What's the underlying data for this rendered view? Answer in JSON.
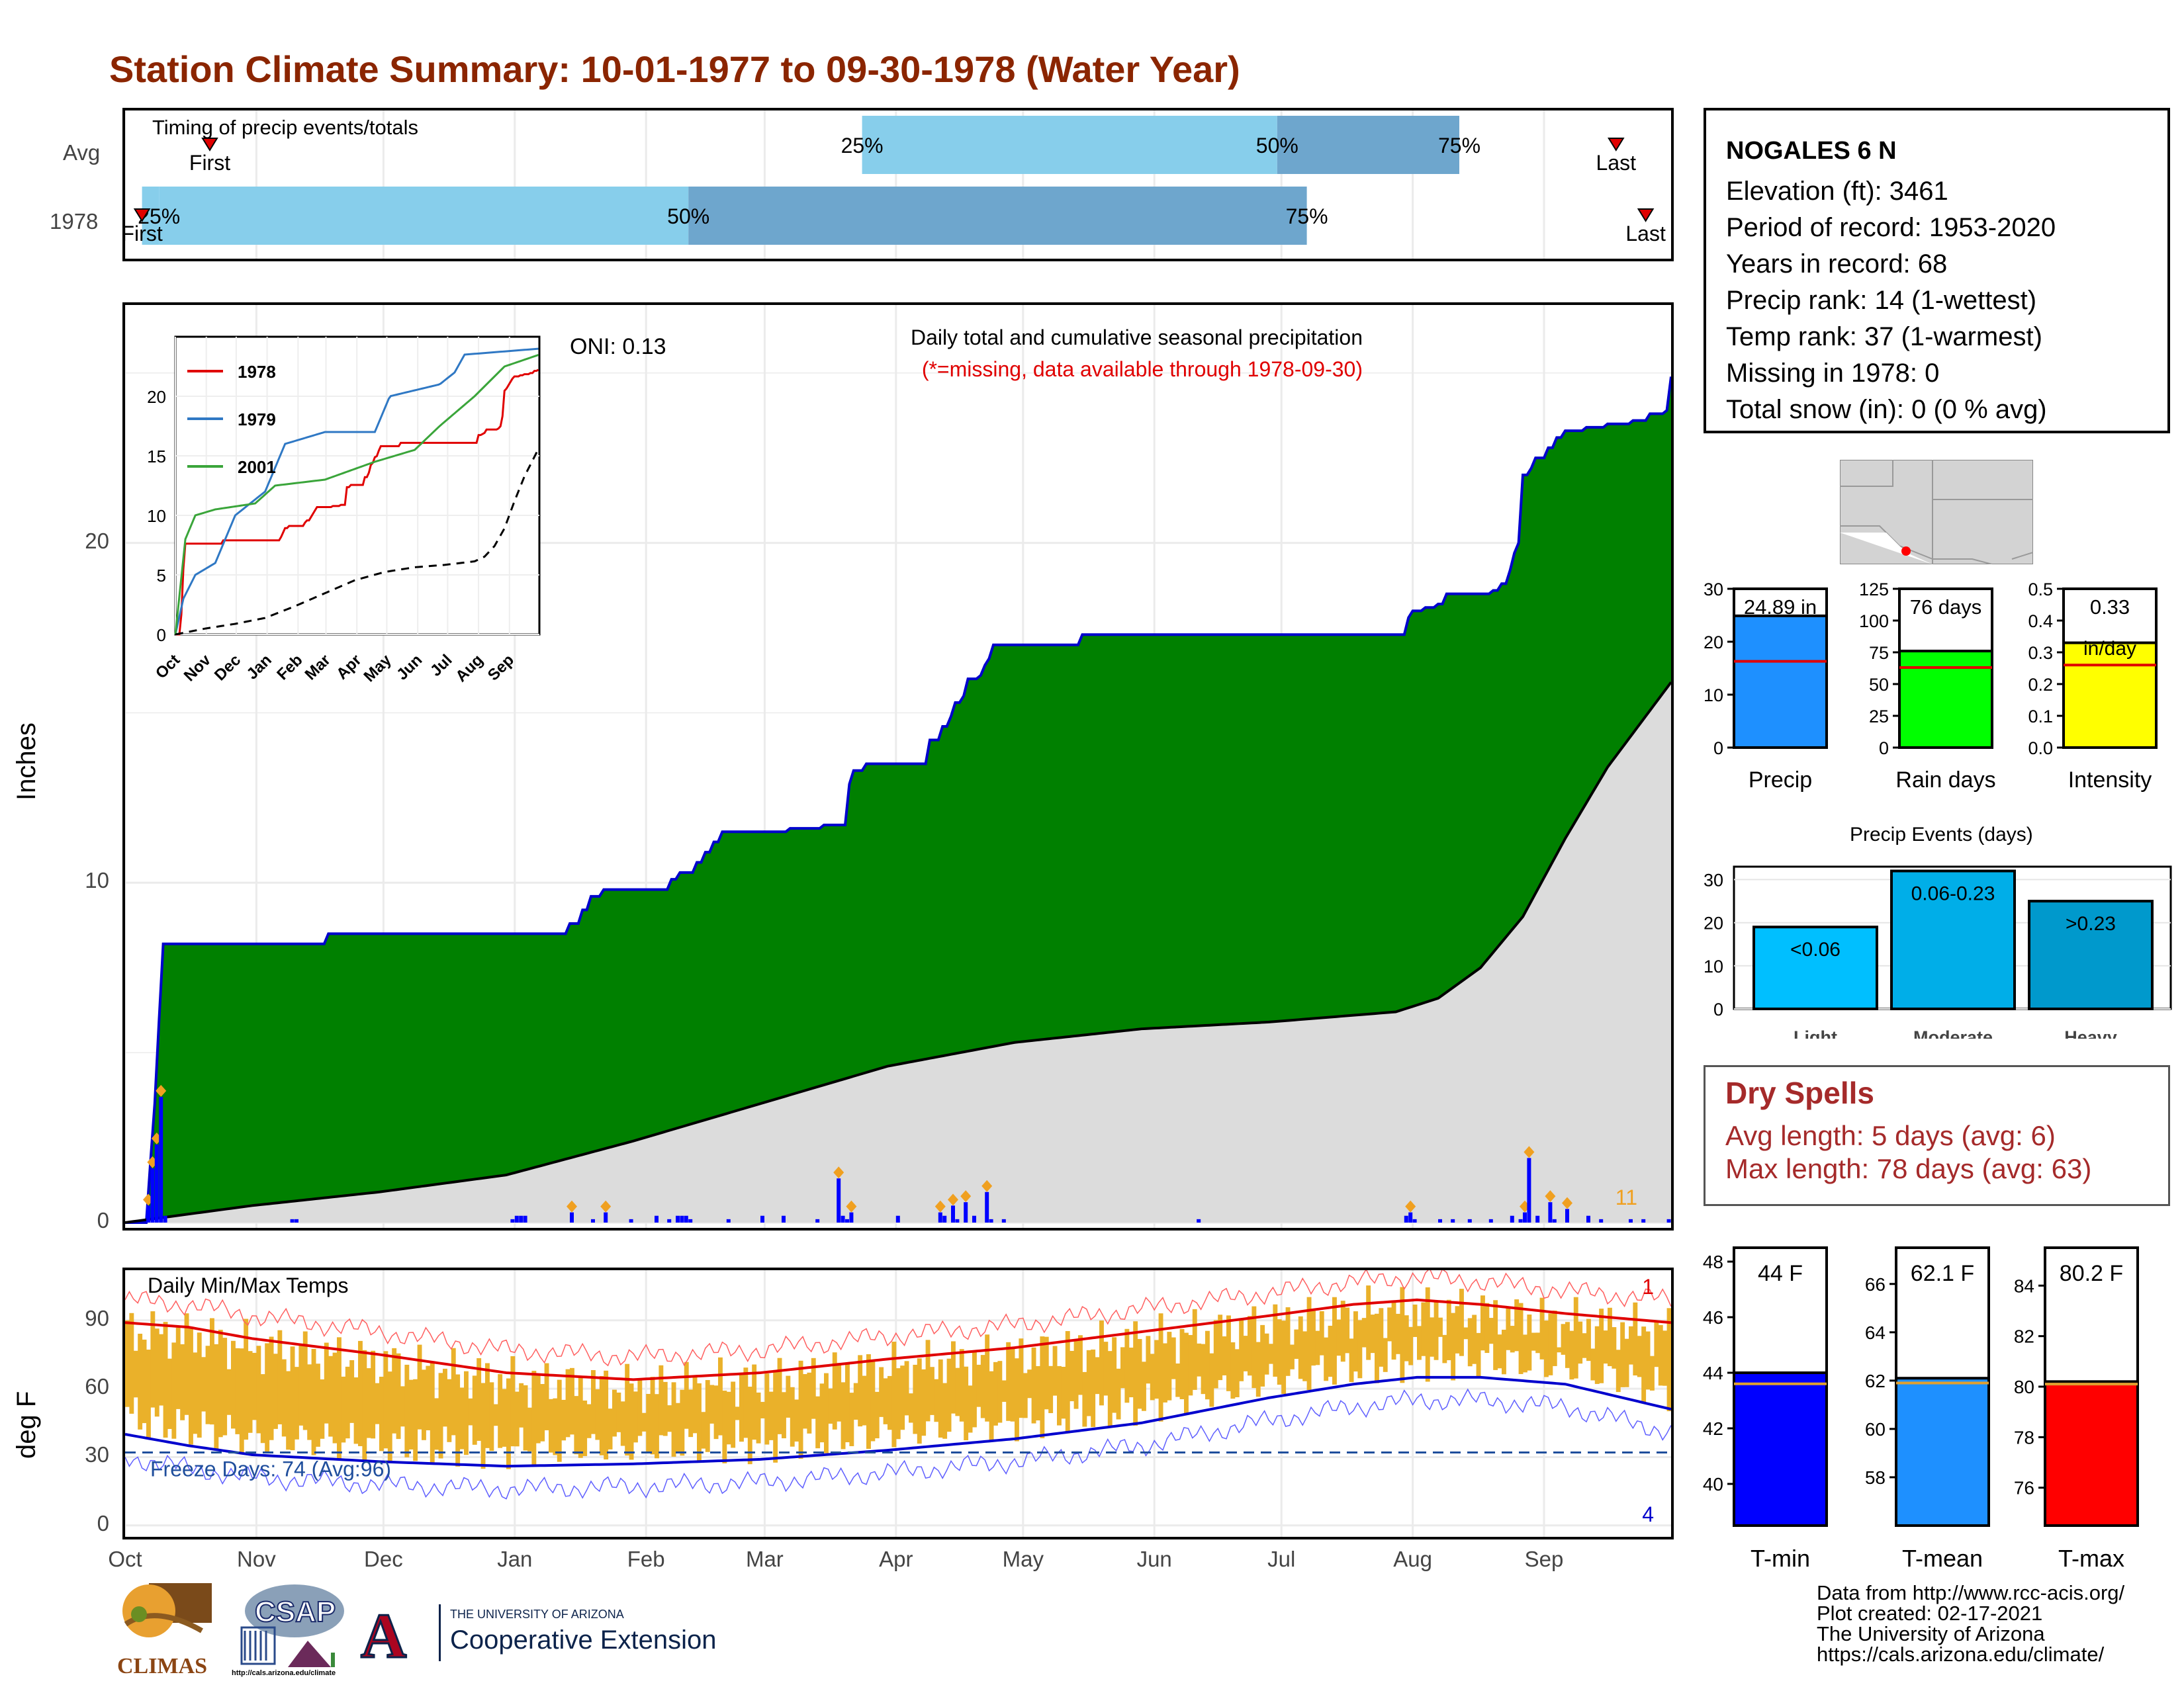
{
  "title": "Station Climate Summary: 10-01-1977 to 09-30-1978 (Water Year)",
  "colors": {
    "title": "#8b2500",
    "green": "#008000",
    "blue_line": "#0000cd",
    "gray_fill": "#dcdcdc",
    "bar": "#0000ff",
    "orange": "#f0a020",
    "red": "#e00000",
    "light_blue": "#87ceeb",
    "mid_blue": "#6ea6cd",
    "dry_text": "#a52a2a"
  },
  "timing": {
    "label": "Timing of precip events/totals",
    "rows": [
      "Avg",
      "1978"
    ],
    "avg": {
      "first_label": "First",
      "last_label": "Last",
      "p25": "25%",
      "p50": "50%",
      "p75": "75%",
      "first_day": 20,
      "last_day": 352,
      "d25": 174,
      "d50": 272,
      "d75": 315
    },
    "y1978": {
      "first_label": "First",
      "last_label": "Last",
      "p25": "25%",
      "p50": "50%",
      "p75": "75%",
      "first_day": 4,
      "last_day": 359,
      "d25": 8,
      "d50": 133,
      "d75": 279
    }
  },
  "main": {
    "y_label": "Inches",
    "oni": "ONI: 0.13",
    "caption1": "Daily total and cumulative seasonal precipitation",
    "caption2": "(*=missing, data available through 1978-09-30)",
    "count_label": "11",
    "y_ticks": [
      "0",
      "10",
      "20"
    ],
    "months": [
      "Oct",
      "Nov",
      "Dec",
      "Jan",
      "Feb",
      "Mar",
      "Apr",
      "May",
      "Jun",
      "Jul",
      "Aug",
      "Sep"
    ]
  },
  "inset": {
    "legend": [
      "1978",
      "1979",
      "2001"
    ],
    "y_ticks": [
      "0",
      "5",
      "10",
      "15",
      "20"
    ],
    "months": [
      "Oct",
      "Nov",
      "Dec",
      "Jan",
      "Feb",
      "Mar",
      "Apr",
      "May",
      "Jun",
      "Jul",
      "Aug",
      "Sep"
    ]
  },
  "temps": {
    "label": "Daily Min/Max Temps",
    "y_label": "deg F",
    "freeze": "Freeze Days: 74 (Avg:96)",
    "count_max": "1",
    "count_min": "4",
    "y_ticks": [
      "0",
      "30",
      "60",
      "90"
    ]
  },
  "station": {
    "name": "NOGALES 6 N",
    "lines": [
      "Elevation (ft): 3461",
      "Period of record: 1953-2020",
      "Years in record: 68",
      "Precip rank: 14 (1-wettest)",
      "Temp rank: 37 (1-warmest)",
      "Missing in 1978: 0",
      "Total snow (in): 0 (0 % avg)"
    ]
  },
  "gauges": {
    "precip": {
      "label": "Precip",
      "value_label": "24.89 in",
      "value": 24.89,
      "avg": 16.3,
      "max": 30,
      "ticks": [
        "0",
        "10",
        "20",
        "30"
      ]
    },
    "raindays": {
      "label": "Rain days",
      "value_label": "76 days",
      "value": 76,
      "avg": 63,
      "max": 125,
      "ticks": [
        "0",
        "25",
        "50",
        "75",
        "100",
        "125"
      ]
    },
    "intensity": {
      "label": "Intensity",
      "value_label": "0.33",
      "unit": "in/day",
      "value": 0.33,
      "avg": 0.26,
      "max": 0.5,
      "ticks": [
        "0.0",
        "0.1",
        "0.2",
        "0.3",
        "0.4",
        "0.5"
      ]
    }
  },
  "events": {
    "title": "Precip Events (days)",
    "ticks": [
      "0",
      "10",
      "20",
      "30"
    ],
    "bars": [
      {
        "label": "Light",
        "value_label": "<0.06",
        "value": 19,
        "color": "#00bfff"
      },
      {
        "label": "Moderate",
        "value_label": "0.06-0.23",
        "value": 32,
        "color": "#00aee8"
      },
      {
        "label": "Heavy",
        "value_label": ">0.23",
        "value": 25,
        "color": "#0099cc"
      }
    ]
  },
  "dry": {
    "title": "Dry Spells",
    "line1": "Avg length: 5 days (avg: 6)",
    "line2": "Max length: 78 days (avg: 63)"
  },
  "tgauges": {
    "tmin": {
      "label": "T-min",
      "value_label": "44 F",
      "value": 44,
      "avg": 43.6,
      "min": 38.5,
      "max": 48.5,
      "ticks": [
        "40",
        "42",
        "44",
        "46",
        "48"
      ],
      "color": "#0000ff"
    },
    "tmean": {
      "label": "T-mean",
      "value_label": "62.1 F",
      "value": 62.1,
      "avg": 61.9,
      "min": 56,
      "max": 67.5,
      "ticks": [
        "58",
        "60",
        "62",
        "64",
        "66"
      ],
      "color": "#1e90ff"
    },
    "tmax": {
      "label": "T-max",
      "value_label": "80.2 F",
      "value": 80.2,
      "avg": 80.1,
      "min": 74.5,
      "max": 85.5,
      "ticks": [
        "76",
        "78",
        "80",
        "82",
        "84"
      ],
      "color": "#ff0000"
    }
  },
  "footer": [
    "Data from http://www.rcc-acis.org/",
    "Plot created: 02-17-2021",
    "The University of Arizona",
    "https://cals.arizona.edu/climate/"
  ],
  "logos": {
    "climas": "CLIMAS",
    "csap": "CSAP",
    "csap_url": "http://cals.arizona.edu/climate",
    "ua_small": "THE UNIVERSITY OF ARIZONA",
    "ua_big": "Cooperative Extension",
    "ua_letter": "A"
  },
  "chart_data": {
    "type": "area",
    "title": "Daily total and cumulative seasonal precipitation",
    "ylabel": "Inches",
    "ylim": [
      0,
      27
    ],
    "xlabel": "",
    "cumulative_1978": [
      [
        0,
        0
      ],
      [
        6,
        1.8
      ],
      [
        7,
        3.5
      ],
      [
        8,
        5.9
      ],
      [
        9,
        8.2
      ],
      [
        47,
        8.2
      ],
      [
        48,
        8.5
      ],
      [
        104,
        8.5
      ],
      [
        105,
        8.8
      ],
      [
        108,
        9.2
      ],
      [
        110,
        9.6
      ],
      [
        113,
        9.8
      ],
      [
        128,
        9.8
      ],
      [
        129,
        10.1
      ],
      [
        131,
        10.3
      ],
      [
        135,
        10.6
      ],
      [
        137,
        10.9
      ],
      [
        139,
        11.2
      ],
      [
        141,
        11.5
      ],
      [
        156,
        11.5
      ],
      [
        157,
        11.6
      ],
      [
        164,
        11.6
      ],
      [
        165,
        11.7
      ],
      [
        170,
        11.7
      ],
      [
        171,
        12.9
      ],
      [
        172,
        13.3
      ],
      [
        175,
        13.5
      ],
      [
        189,
        13.5
      ],
      [
        190,
        14.2
      ],
      [
        193,
        14.6
      ],
      [
        195,
        14.9
      ],
      [
        196,
        15.3
      ],
      [
        198,
        15.5
      ],
      [
        199,
        16.0
      ],
      [
        202,
        16.1
      ],
      [
        203,
        16.4
      ],
      [
        204,
        16.6
      ],
      [
        205,
        17.0
      ],
      [
        225,
        17.0
      ],
      [
        226,
        17.3
      ],
      [
        302,
        17.3
      ],
      [
        303,
        17.8
      ],
      [
        304,
        18.0
      ],
      [
        307,
        18.1
      ],
      [
        310,
        18.2
      ],
      [
        312,
        18.5
      ],
      [
        323,
        18.6
      ],
      [
        325,
        18.8
      ],
      [
        327,
        19.2
      ],
      [
        328,
        19.7
      ],
      [
        329,
        20.0
      ],
      [
        330,
        22.0
      ],
      [
        332,
        22.2
      ],
      [
        333,
        22.5
      ],
      [
        336,
        22.8
      ],
      [
        338,
        23.1
      ],
      [
        340,
        23.3
      ],
      [
        345,
        23.4
      ],
      [
        350,
        23.5
      ],
      [
        356,
        23.6
      ],
      [
        360,
        23.8
      ],
      [
        364,
        23.9
      ],
      [
        365,
        24.89
      ]
    ],
    "average_cumulative": [
      [
        0,
        0
      ],
      [
        30,
        0.5
      ],
      [
        60,
        0.9
      ],
      [
        90,
        1.4
      ],
      [
        120,
        2.4
      ],
      [
        150,
        3.5
      ],
      [
        180,
        4.6
      ],
      [
        210,
        5.3
      ],
      [
        240,
        5.7
      ],
      [
        270,
        5.9
      ],
      [
        300,
        6.2
      ],
      [
        310,
        6.6
      ],
      [
        320,
        7.5
      ],
      [
        330,
        9.0
      ],
      [
        340,
        11.3
      ],
      [
        350,
        13.4
      ],
      [
        365,
        15.9
      ]
    ],
    "daily_bars": [
      [
        5,
        0.5
      ],
      [
        6,
        1.6
      ],
      [
        7,
        2.3
      ],
      [
        8,
        3.7
      ],
      [
        9,
        0.2
      ],
      [
        39,
        0.1
      ],
      [
        40,
        0.1
      ],
      [
        91,
        0.1
      ],
      [
        92,
        0.2
      ],
      [
        93,
        0.2
      ],
      [
        94,
        0.2
      ],
      [
        105,
        0.3
      ],
      [
        110,
        0.1
      ],
      [
        113,
        0.3
      ],
      [
        119,
        0.1
      ],
      [
        125,
        0.2
      ],
      [
        128,
        0.1
      ],
      [
        130,
        0.2
      ],
      [
        131,
        0.2
      ],
      [
        132,
        0.2
      ],
      [
        133,
        0.1
      ],
      [
        142,
        0.1
      ],
      [
        150,
        0.2
      ],
      [
        155,
        0.2
      ],
      [
        163,
        0.1
      ],
      [
        168,
        1.3
      ],
      [
        169,
        0.2
      ],
      [
        170,
        0.1
      ],
      [
        171,
        0.3
      ],
      [
        182,
        0.2
      ],
      [
        192,
        0.3
      ],
      [
        193,
        0.2
      ],
      [
        195,
        0.5
      ],
      [
        196,
        0.1
      ],
      [
        198,
        0.6
      ],
      [
        200,
        0.2
      ],
      [
        203,
        0.9
      ],
      [
        204,
        0.1
      ],
      [
        207,
        0.1
      ],
      [
        253,
        0.1
      ],
      [
        302,
        0.2
      ],
      [
        303,
        0.3
      ],
      [
        304,
        0.1
      ],
      [
        310,
        0.1
      ],
      [
        313,
        0.1
      ],
      [
        317,
        0.1
      ],
      [
        322,
        0.1
      ],
      [
        327,
        0.2
      ],
      [
        329,
        0.1
      ],
      [
        330,
        0.3
      ],
      [
        331,
        1.9
      ],
      [
        333,
        0.2
      ],
      [
        336,
        0.6
      ],
      [
        337,
        0.1
      ],
      [
        340,
        0.4
      ],
      [
        345,
        0.2
      ],
      [
        348,
        0.1
      ],
      [
        355,
        0.1
      ],
      [
        358,
        0.1
      ],
      [
        364,
        0.1
      ]
    ],
    "months": [
      "Oct",
      "Nov",
      "Dec",
      "Jan",
      "Feb",
      "Mar",
      "Apr",
      "May",
      "Jun",
      "Jul",
      "Aug",
      "Sep"
    ],
    "temperature": {
      "ylim": [
        -5,
        112
      ],
      "avg_max": [
        [
          0,
          89
        ],
        [
          15,
          87
        ],
        [
          30,
          82
        ],
        [
          60,
          75
        ],
        [
          90,
          67
        ],
        [
          120,
          64
        ],
        [
          150,
          67
        ],
        [
          180,
          73
        ],
        [
          210,
          78
        ],
        [
          240,
          85
        ],
        [
          270,
          92
        ],
        [
          290,
          97
        ],
        [
          305,
          99
        ],
        [
          320,
          97
        ],
        [
          340,
          93
        ],
        [
          365,
          89
        ]
      ],
      "avg_min": [
        [
          0,
          40
        ],
        [
          15,
          35
        ],
        [
          30,
          31
        ],
        [
          60,
          28
        ],
        [
          90,
          26
        ],
        [
          120,
          27
        ],
        [
          150,
          29
        ],
        [
          180,
          33
        ],
        [
          210,
          38
        ],
        [
          240,
          45
        ],
        [
          270,
          56
        ],
        [
          290,
          62
        ],
        [
          305,
          65
        ],
        [
          320,
          65
        ],
        [
          340,
          62
        ],
        [
          365,
          51
        ]
      ],
      "freeze_line": 32
    }
  }
}
